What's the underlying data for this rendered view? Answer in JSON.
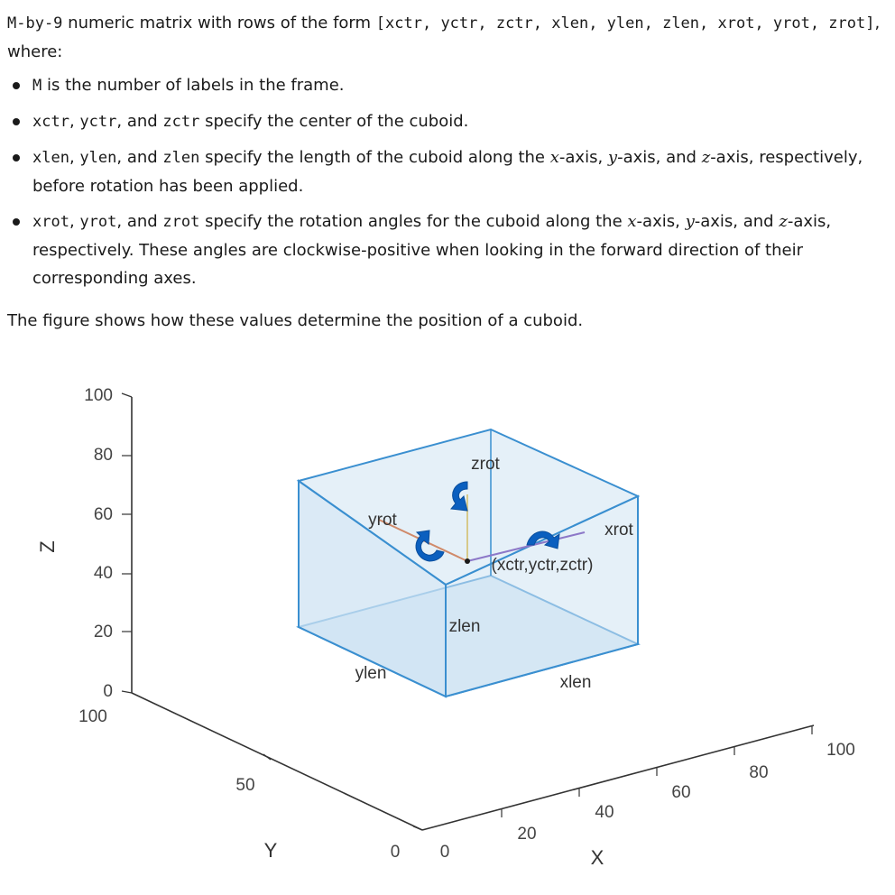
{
  "intro": {
    "m_by_9": "M-by-9",
    "lead": "numeric matrix with rows of the form",
    "row_form": "[xctr, yctr, zctr, xlen, ylen, zlen, xrot, yrot, zrot]",
    "where": ", where:"
  },
  "bullets": [
    {
      "code1": "M",
      "text1": "is the number of labels in the frame."
    },
    {
      "code1": "xctr",
      "sep1": ",",
      "code2": "yctr",
      "sep2": ", and",
      "code3": "zctr",
      "text": "specify the center of the cuboid."
    },
    {
      "code1": "xlen",
      "sep1": ",",
      "code2": "ylen",
      "sep2": ", and",
      "code3": "zlen",
      "text_a": "specify the length of the cuboid along the",
      "axis_x": "x",
      "axis_x_suffix": "-axis,",
      "axis_y": "y",
      "axis_y_suffix": "-axis, and",
      "axis_z": "z",
      "axis_z_suffix": "-axis, respectively, before rotation has been applied."
    },
    {
      "code1": "xrot",
      "sep1": ",",
      "code2": "yrot",
      "sep2": ", and",
      "code3": "zrot",
      "text_a": "specify the rotation angles for the cuboid along the",
      "axis_x": "x",
      "axis_x_suffix": "-axis,",
      "axis_y": "y",
      "axis_y_suffix": "-axis, and",
      "axis_z": "z",
      "axis_z_suffix": "-axis, respectively. These angles are clockwise-positive when looking in the forward direction of their corresponding axes."
    }
  ],
  "caption": "The figure shows how these values determine the position of a cuboid.",
  "figure": {
    "axes": {
      "z_label": "Z",
      "y_label": "Y",
      "x_label": "X",
      "z_ticks": [
        "100",
        "80",
        "60",
        "40",
        "20",
        "0"
      ],
      "y_ticks": [
        "100",
        "50",
        "0"
      ],
      "x_ticks": [
        "0",
        "20",
        "40",
        "60",
        "80",
        "100"
      ]
    },
    "annotations": {
      "zrot": "zrot",
      "yrot": "yrot",
      "xrot": "xrot",
      "center": "(xctr,yctr,zctr)",
      "zlen": "zlen",
      "ylen": "ylen",
      "xlen": "xlen"
    },
    "colors": {
      "cuboid_fill": "#cfe3f3",
      "cuboid_edge": "#3a8fd0",
      "rotation_arrow": "#0b5fbf",
      "axis_line": "#333333",
      "xrot_line": "#8c78c8",
      "yrot_line": "#d08a6a",
      "zrot_line": "#d7c98a"
    }
  }
}
